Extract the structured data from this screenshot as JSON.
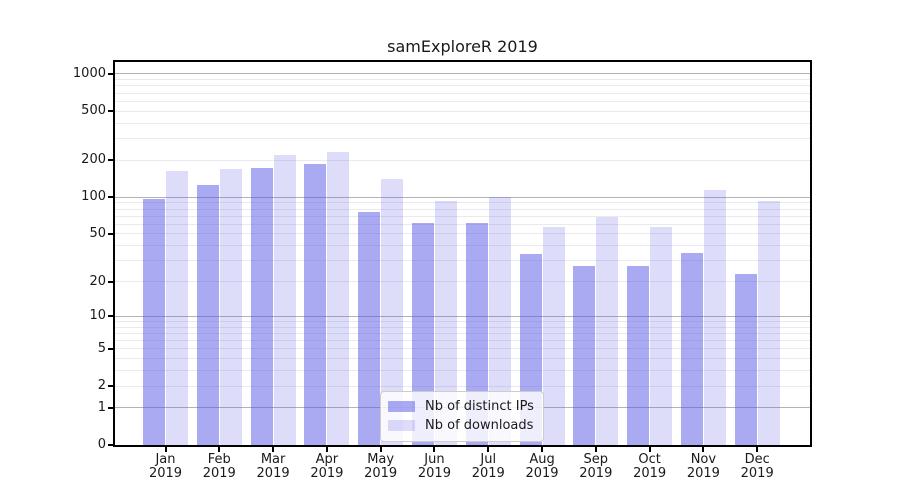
{
  "colors": {
    "bar_distinct_ips": "rgba(85,85,230,0.5)",
    "bar_downloads": "rgba(85,85,230,0.2)",
    "bar_accent_hex": "#5555e6",
    "grid_major": "#b3b3b3",
    "grid_minor": "#e9e9ef",
    "axis": "#000000",
    "legend_border": "#cccccc"
  },
  "chart_data": {
    "type": "bar",
    "title": "samExploreR 2019",
    "categories": [
      "Jan 2019",
      "Feb 2019",
      "Mar 2019",
      "Apr 2019",
      "May 2019",
      "Jun 2019",
      "Jul 2019",
      "Aug 2019",
      "Sep 2019",
      "Oct 2019",
      "Nov 2019",
      "Dec 2019"
    ],
    "series": [
      {
        "name": "Nb of distinct IPs",
        "values": [
          97,
          125,
          173,
          188,
          75,
          62,
          62,
          34,
          27,
          27,
          35,
          23
        ]
      },
      {
        "name": "Nb of downloads",
        "values": [
          163,
          169,
          220,
          235,
          140,
          93,
          101,
          57,
          69,
          57,
          115,
          93
        ]
      }
    ],
    "xlabel": "",
    "ylabel": "",
    "yscale": "log1p",
    "yticks": [
      1000,
      500,
      200,
      100,
      50,
      20,
      10,
      5,
      2,
      1,
      0
    ],
    "ylim": [
      0,
      1070
    ],
    "grid": true,
    "legend_position": "lower center"
  }
}
